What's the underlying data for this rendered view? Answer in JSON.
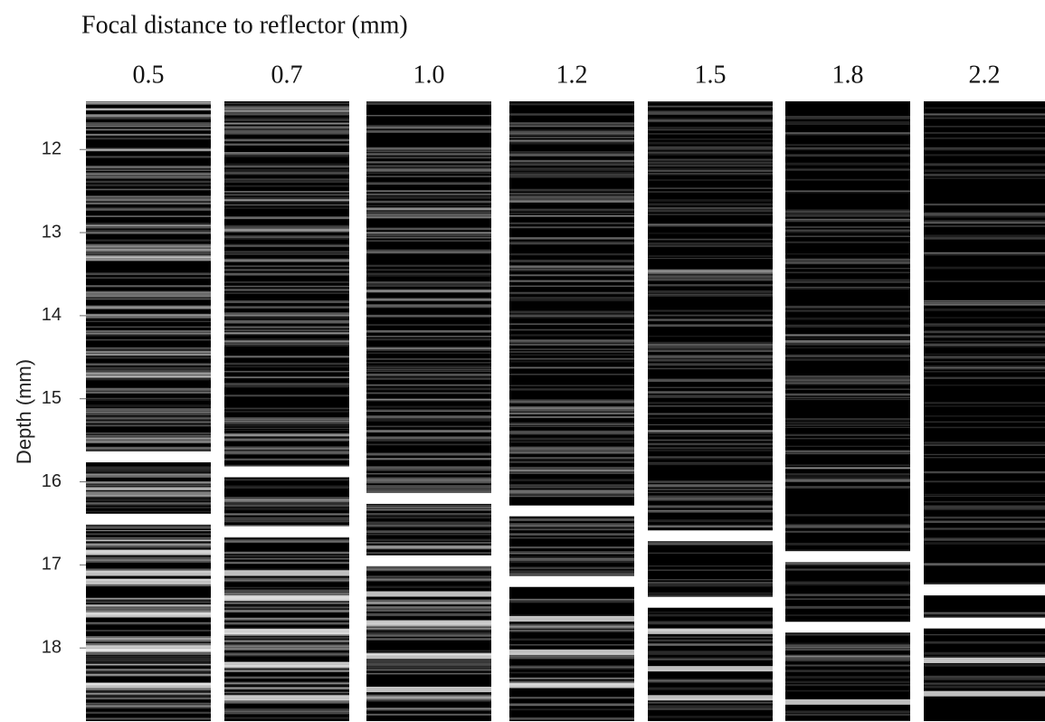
{
  "chart_data": {
    "type": "strip",
    "title": "Focal distance to reflector (mm)",
    "y_label": "Depth (mm)",
    "ylim": [
      11.42,
      18.88
    ],
    "yticks": [
      12,
      13,
      14,
      15,
      16,
      17,
      18
    ],
    "panels": [
      {
        "label": "0.5",
        "bands": [
          15.7,
          16.45,
          16.85,
          17.1,
          17.2,
          17.6,
          18.0,
          18.45
        ]
      },
      {
        "label": "0.7",
        "bands": [
          15.88,
          16.6,
          17.1,
          17.4,
          17.8,
          18.2,
          18.6
        ]
      },
      {
        "label": "1.0",
        "bands": [
          16.2,
          16.95,
          17.35,
          17.7,
          18.1,
          18.5
        ]
      },
      {
        "label": "1.2",
        "bands": [
          16.35,
          17.2,
          17.65,
          18.05,
          18.45
        ]
      },
      {
        "label": "1.5",
        "bands": [
          16.65,
          17.45,
          17.8,
          18.25,
          18.6
        ]
      },
      {
        "label": "1.8",
        "bands": [
          16.9,
          17.75,
          18.65
        ]
      },
      {
        "label": "2.2",
        "bands": [
          17.3,
          17.7,
          18.15,
          18.55
        ]
      }
    ]
  }
}
